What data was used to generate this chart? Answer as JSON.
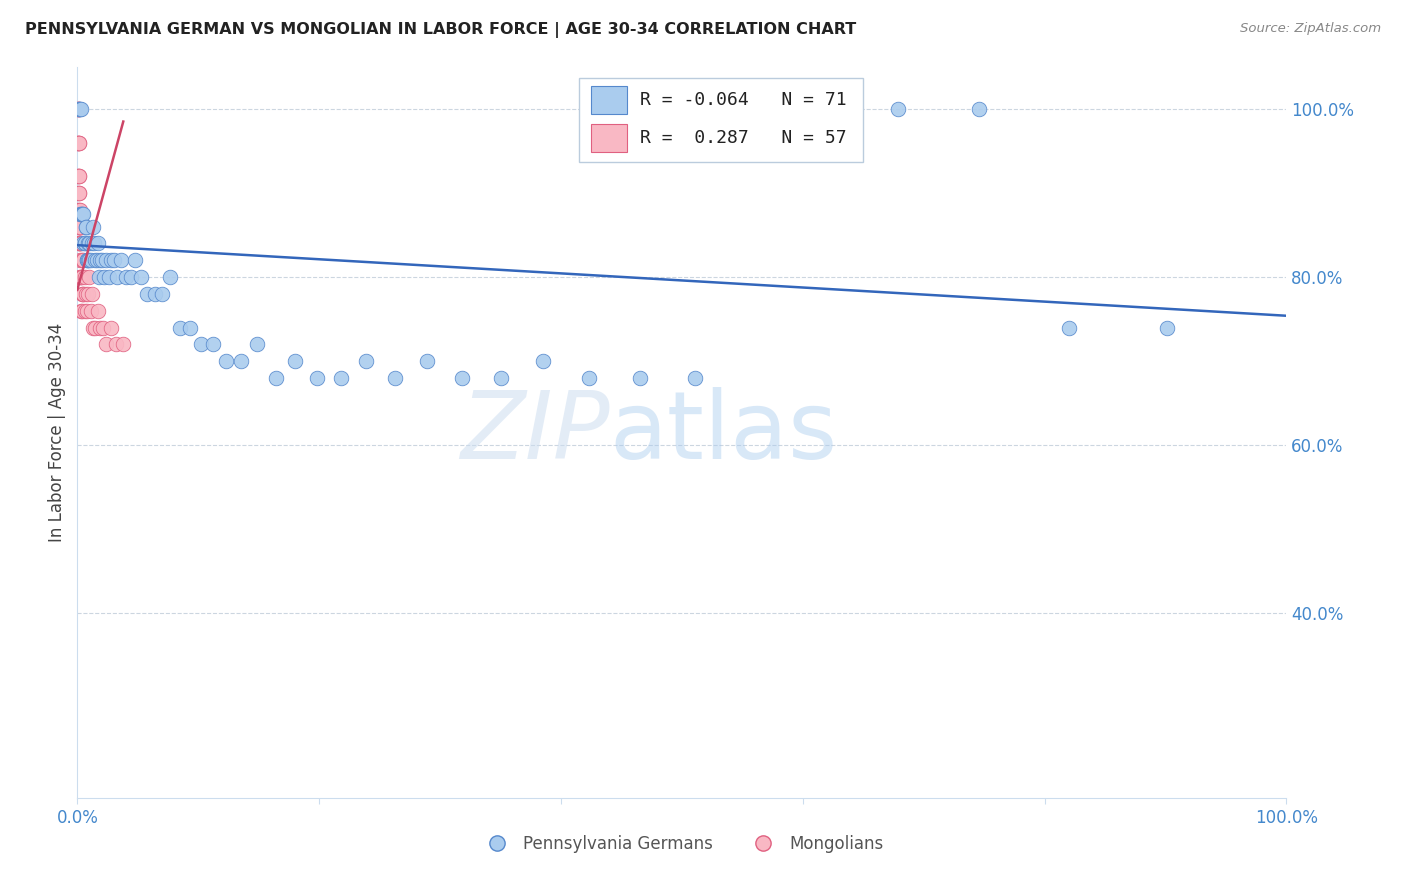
{
  "title": "PENNSYLVANIA GERMAN VS MONGOLIAN IN LABOR FORCE | AGE 30-34 CORRELATION CHART",
  "source": "Source: ZipAtlas.com",
  "ylabel": "In Labor Force | Age 30-34",
  "watermark_zip": "ZIP",
  "watermark_atlas": "atlas",
  "legend_blue_label": "Pennsylvania Germans",
  "legend_pink_label": "Mongolians",
  "legend_r_blue": "-0.064",
  "legend_n_blue": "71",
  "legend_r_pink": "0.287",
  "legend_n_pink": "57",
  "blue_scatter_x": [
    0.001,
    0.001,
    0.002,
    0.002,
    0.003,
    0.003,
    0.004,
    0.004,
    0.005,
    0.005,
    0.006,
    0.006,
    0.007,
    0.007,
    0.008,
    0.008,
    0.009,
    0.009,
    0.01,
    0.01,
    0.011,
    0.012,
    0.013,
    0.014,
    0.015,
    0.016,
    0.017,
    0.018,
    0.019,
    0.02,
    0.022,
    0.024,
    0.026,
    0.028,
    0.03,
    0.033,
    0.036,
    0.04,
    0.044,
    0.048,
    0.053,
    0.058,
    0.064,
    0.07,
    0.077,
    0.085,
    0.093,
    0.102,
    0.112,
    0.123,
    0.135,
    0.149,
    0.164,
    0.18,
    0.198,
    0.218,
    0.239,
    0.263,
    0.289,
    0.318,
    0.35,
    0.385,
    0.423,
    0.465,
    0.511,
    0.562,
    0.618,
    0.679,
    0.746,
    0.82,
    0.901
  ],
  "blue_scatter_y": [
    1.0,
    1.0,
    1.0,
    0.875,
    1.0,
    0.875,
    0.875,
    0.875,
    0.875,
    0.84,
    0.84,
    0.84,
    0.86,
    0.86,
    0.82,
    0.82,
    0.84,
    0.82,
    0.84,
    0.82,
    0.82,
    0.84,
    0.86,
    0.84,
    0.82,
    0.82,
    0.84,
    0.8,
    0.82,
    0.82,
    0.8,
    0.82,
    0.8,
    0.82,
    0.82,
    0.8,
    0.82,
    0.8,
    0.8,
    0.82,
    0.8,
    0.78,
    0.78,
    0.78,
    0.8,
    0.74,
    0.74,
    0.72,
    0.72,
    0.7,
    0.7,
    0.72,
    0.68,
    0.7,
    0.68,
    0.68,
    0.7,
    0.68,
    0.7,
    0.68,
    0.68,
    0.7,
    0.68,
    0.68,
    0.68,
    1.0,
    1.0,
    1.0,
    1.0,
    0.74,
    0.74
  ],
  "pink_scatter_x": [
    0.0005,
    0.0005,
    0.0005,
    0.0005,
    0.0005,
    0.0007,
    0.0007,
    0.0007,
    0.0009,
    0.0009,
    0.001,
    0.001,
    0.001,
    0.001,
    0.001,
    0.0012,
    0.0012,
    0.0012,
    0.0014,
    0.0014,
    0.0016,
    0.0016,
    0.0018,
    0.002,
    0.002,
    0.002,
    0.0022,
    0.0022,
    0.0025,
    0.0025,
    0.003,
    0.003,
    0.003,
    0.0035,
    0.0035,
    0.004,
    0.004,
    0.0045,
    0.005,
    0.005,
    0.006,
    0.006,
    0.007,
    0.008,
    0.009,
    0.01,
    0.011,
    0.012,
    0.013,
    0.015,
    0.017,
    0.019,
    0.021,
    0.024,
    0.028,
    0.032,
    0.038
  ],
  "pink_scatter_y": [
    1.0,
    1.0,
    0.96,
    0.92,
    0.88,
    1.0,
    0.96,
    0.92,
    0.96,
    0.9,
    1.0,
    0.96,
    0.92,
    0.88,
    0.84,
    0.96,
    0.9,
    0.84,
    0.92,
    0.86,
    0.9,
    0.84,
    0.86,
    0.88,
    0.84,
    0.8,
    0.86,
    0.82,
    0.84,
    0.8,
    0.84,
    0.8,
    0.76,
    0.82,
    0.78,
    0.8,
    0.76,
    0.78,
    0.82,
    0.78,
    0.8,
    0.76,
    0.78,
    0.76,
    0.78,
    0.8,
    0.76,
    0.78,
    0.74,
    0.74,
    0.76,
    0.74,
    0.74,
    0.72,
    0.74,
    0.72,
    0.72
  ],
  "blue_line_x": [
    0.0,
    1.0
  ],
  "blue_line_y": [
    0.838,
    0.754
  ],
  "pink_line_x": [
    0.0,
    0.038
  ],
  "pink_line_y": [
    0.785,
    0.985
  ],
  "blue_color": "#aaccee",
  "blue_edge_color": "#5588cc",
  "pink_color": "#f9b8c4",
  "pink_edge_color": "#e06080",
  "blue_line_color": "#3366bb",
  "pink_line_color": "#cc4466",
  "grid_color": "#aabbcc",
  "axis_tick_color": "#4488cc",
  "ylabel_color": "#444444",
  "title_color": "#222222",
  "source_color": "#888888",
  "background_color": "#ffffff",
  "xlim": [
    0.0,
    1.0
  ],
  "ylim": [
    0.18,
    1.05
  ],
  "yticks": [
    0.4,
    0.6,
    0.8,
    1.0
  ],
  "ytick_labels": [
    "40.0%",
    "60.0%",
    "80.0%",
    "100.0%"
  ],
  "xticks": [
    0.0,
    0.2,
    0.4,
    0.6,
    0.8,
    1.0
  ],
  "xtick_labels": [
    "0.0%",
    "",
    "",
    "",
    "",
    "100.0%"
  ]
}
